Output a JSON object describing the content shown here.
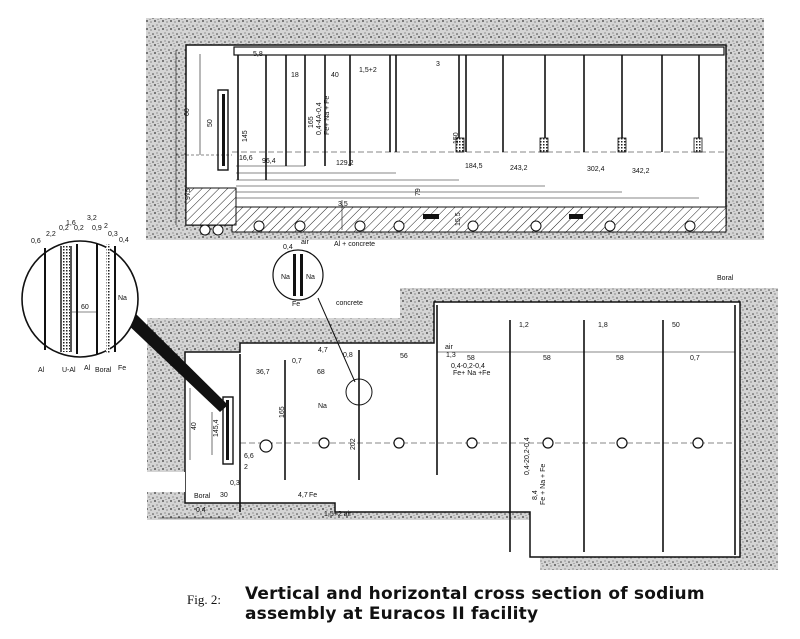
{
  "top_section": {
    "dims": [
      "5,8",
      "1,5+2",
      "3",
      "18",
      "40",
      "60",
      "50",
      "145",
      "165",
      "0,4-4A-0,4",
      "Fe+ Na + Fe",
      "150",
      "16,6",
      "96,4",
      "129,2",
      "184,5",
      "243,2",
      "302,4",
      "342,2",
      "975",
      "3,5",
      "79",
      "15,5"
    ],
    "label_base": "Al + concrete"
  },
  "inset_small": {
    "labels": [
      "0,4",
      "air",
      "Na",
      "Na",
      "Fe"
    ]
  },
  "inset_big": {
    "dims": [
      "0,6",
      "2,2",
      "0,2",
      "1,6",
      "3,2",
      "0,2",
      "0,9",
      "2",
      "0,3",
      "0,4",
      "60"
    ],
    "labels": [
      "Na",
      "Al",
      "U-Al",
      "Al",
      "Boral",
      "Fe"
    ]
  },
  "bottom_section": {
    "dims": [
      "0,7",
      "4,7",
      "36,7",
      "68",
      "0,8",
      "56",
      "1,3",
      "58",
      "0,4-0,2-0,4",
      "58",
      "58",
      "0,7",
      "1,2",
      "1,8",
      "50",
      "40",
      "145,4",
      "165",
      "202",
      "0,4-20,2-0,4",
      "8,4",
      "6,6",
      "2",
      "0,3",
      "30",
      "0,4",
      "4,7",
      "1,5+2 air"
    ],
    "labels": [
      "air",
      "Na",
      "Fe+ Na +Fe",
      "Fe + Na + Fe",
      "concrete",
      "Boral",
      "Boral",
      "Fe"
    ]
  },
  "caption": {
    "prefix": "Fig. 2:",
    "title": "Vertical and horizontal cross section of sodium assembly at Euracos II facility"
  }
}
